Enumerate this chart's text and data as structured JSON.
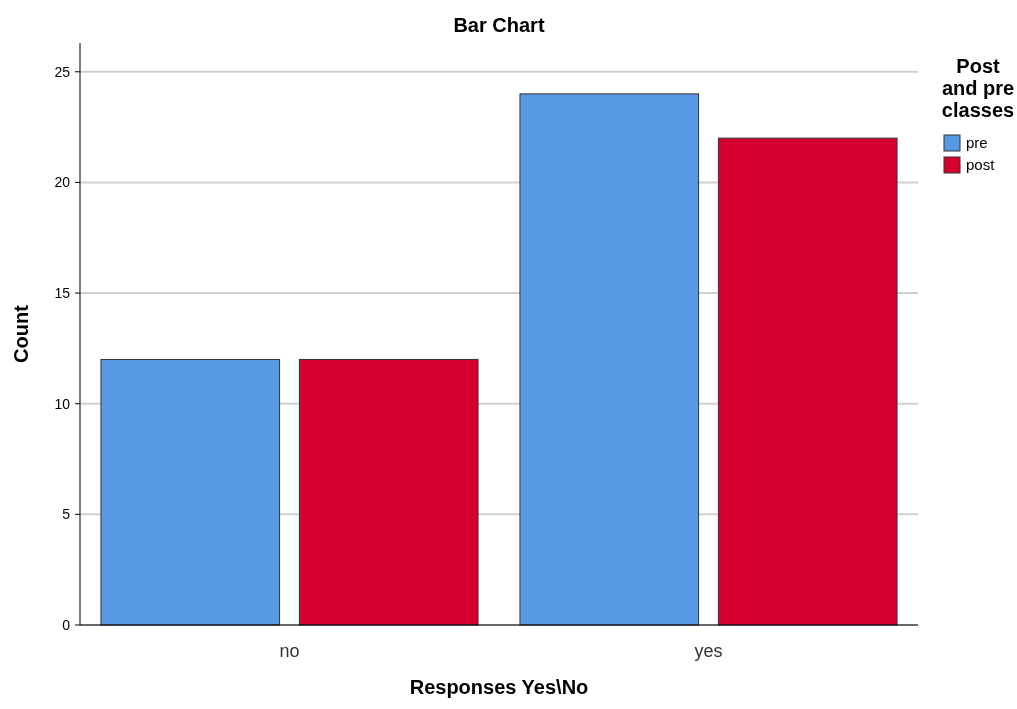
{
  "chart_data": {
    "type": "bar",
    "title": "Bar Chart",
    "xlabel": "Responses Yes\\No",
    "ylabel": "Count",
    "legend_title": "Post and pre classes",
    "categories": [
      "no",
      "yes"
    ],
    "series": [
      {
        "name": "pre",
        "color": "#5899e3",
        "values": [
          12,
          24
        ]
      },
      {
        "name": "post",
        "color": "#d5002f",
        "values": [
          12,
          22
        ]
      }
    ],
    "ylim": [
      0,
      26.3
    ],
    "yticks": [
      0,
      5,
      10,
      15,
      20,
      25
    ],
    "grid": "y",
    "legend": "top right"
  }
}
